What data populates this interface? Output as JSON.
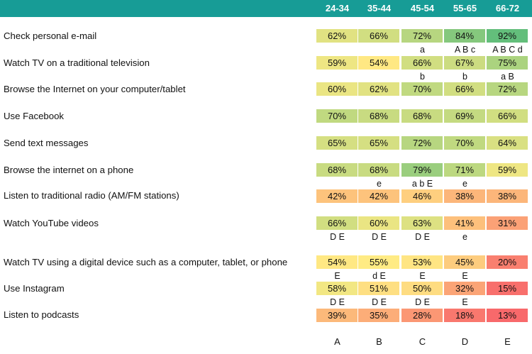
{
  "chart_data": {
    "type": "table",
    "title": "",
    "columns": [
      "24-34",
      "35-44",
      "45-54",
      "55-65",
      "66-72"
    ],
    "column_letters": [
      "A",
      "B",
      "C",
      "D",
      "E"
    ],
    "rows": [
      {
        "label": "Check personal e-mail",
        "values": [
          62,
          66,
          72,
          84,
          92
        ],
        "sig": [
          "",
          "",
          "a",
          "A B c",
          "A B C d"
        ]
      },
      {
        "label": "Watch TV on a traditional television",
        "values": [
          59,
          54,
          66,
          67,
          75
        ],
        "sig": [
          "",
          "",
          "b",
          "b",
          "a B"
        ]
      },
      {
        "label": "Browse the Internet on your computer/tablet",
        "values": [
          60,
          62,
          70,
          66,
          72
        ],
        "sig": [
          "",
          "",
          "",
          "",
          ""
        ]
      },
      {
        "label": "Use Facebook",
        "values": [
          70,
          68,
          68,
          69,
          66
        ],
        "sig": [
          "",
          "",
          "",
          "",
          ""
        ]
      },
      {
        "label": "Send text messages",
        "values": [
          65,
          65,
          72,
          70,
          64
        ],
        "sig": [
          "",
          "",
          "",
          "",
          ""
        ]
      },
      {
        "label": "Browse the internet on a phone",
        "values": [
          68,
          68,
          79,
          71,
          59
        ],
        "sig": [
          "",
          "e",
          "a b E",
          "e",
          ""
        ]
      },
      {
        "label": "Listen to traditional radio (AM/FM stations)",
        "values": [
          42,
          42,
          46,
          38,
          38
        ],
        "sig": [
          "",
          "",
          "",
          "",
          ""
        ]
      },
      {
        "label": "Watch YouTube videos",
        "values": [
          66,
          60,
          63,
          41,
          31
        ],
        "sig": [
          "D E",
          "D E",
          "D E",
          "e",
          ""
        ]
      },
      {
        "label": "Watch TV using a digital device such as a computer, tablet, or phone",
        "values": [
          54,
          55,
          53,
          45,
          20
        ],
        "sig": [
          "E",
          "d E",
          "E",
          "E",
          ""
        ]
      },
      {
        "label": "Use Instagram",
        "values": [
          58,
          51,
          50,
          32,
          15
        ],
        "sig": [
          "D E",
          "D E",
          "D E",
          "E",
          ""
        ]
      },
      {
        "label": "Listen to podcasts",
        "values": [
          39,
          35,
          28,
          18,
          13
        ],
        "sig": [
          "",
          "",
          "",
          "",
          ""
        ]
      }
    ],
    "value_suffix": "%",
    "colors": {
      "header": "#179c96",
      "high": "#63be7b",
      "mid": "#ffeb84",
      "low": "#f8696b"
    },
    "color_scale": {
      "min": 13,
      "mid": 55,
      "max": 92
    }
  }
}
